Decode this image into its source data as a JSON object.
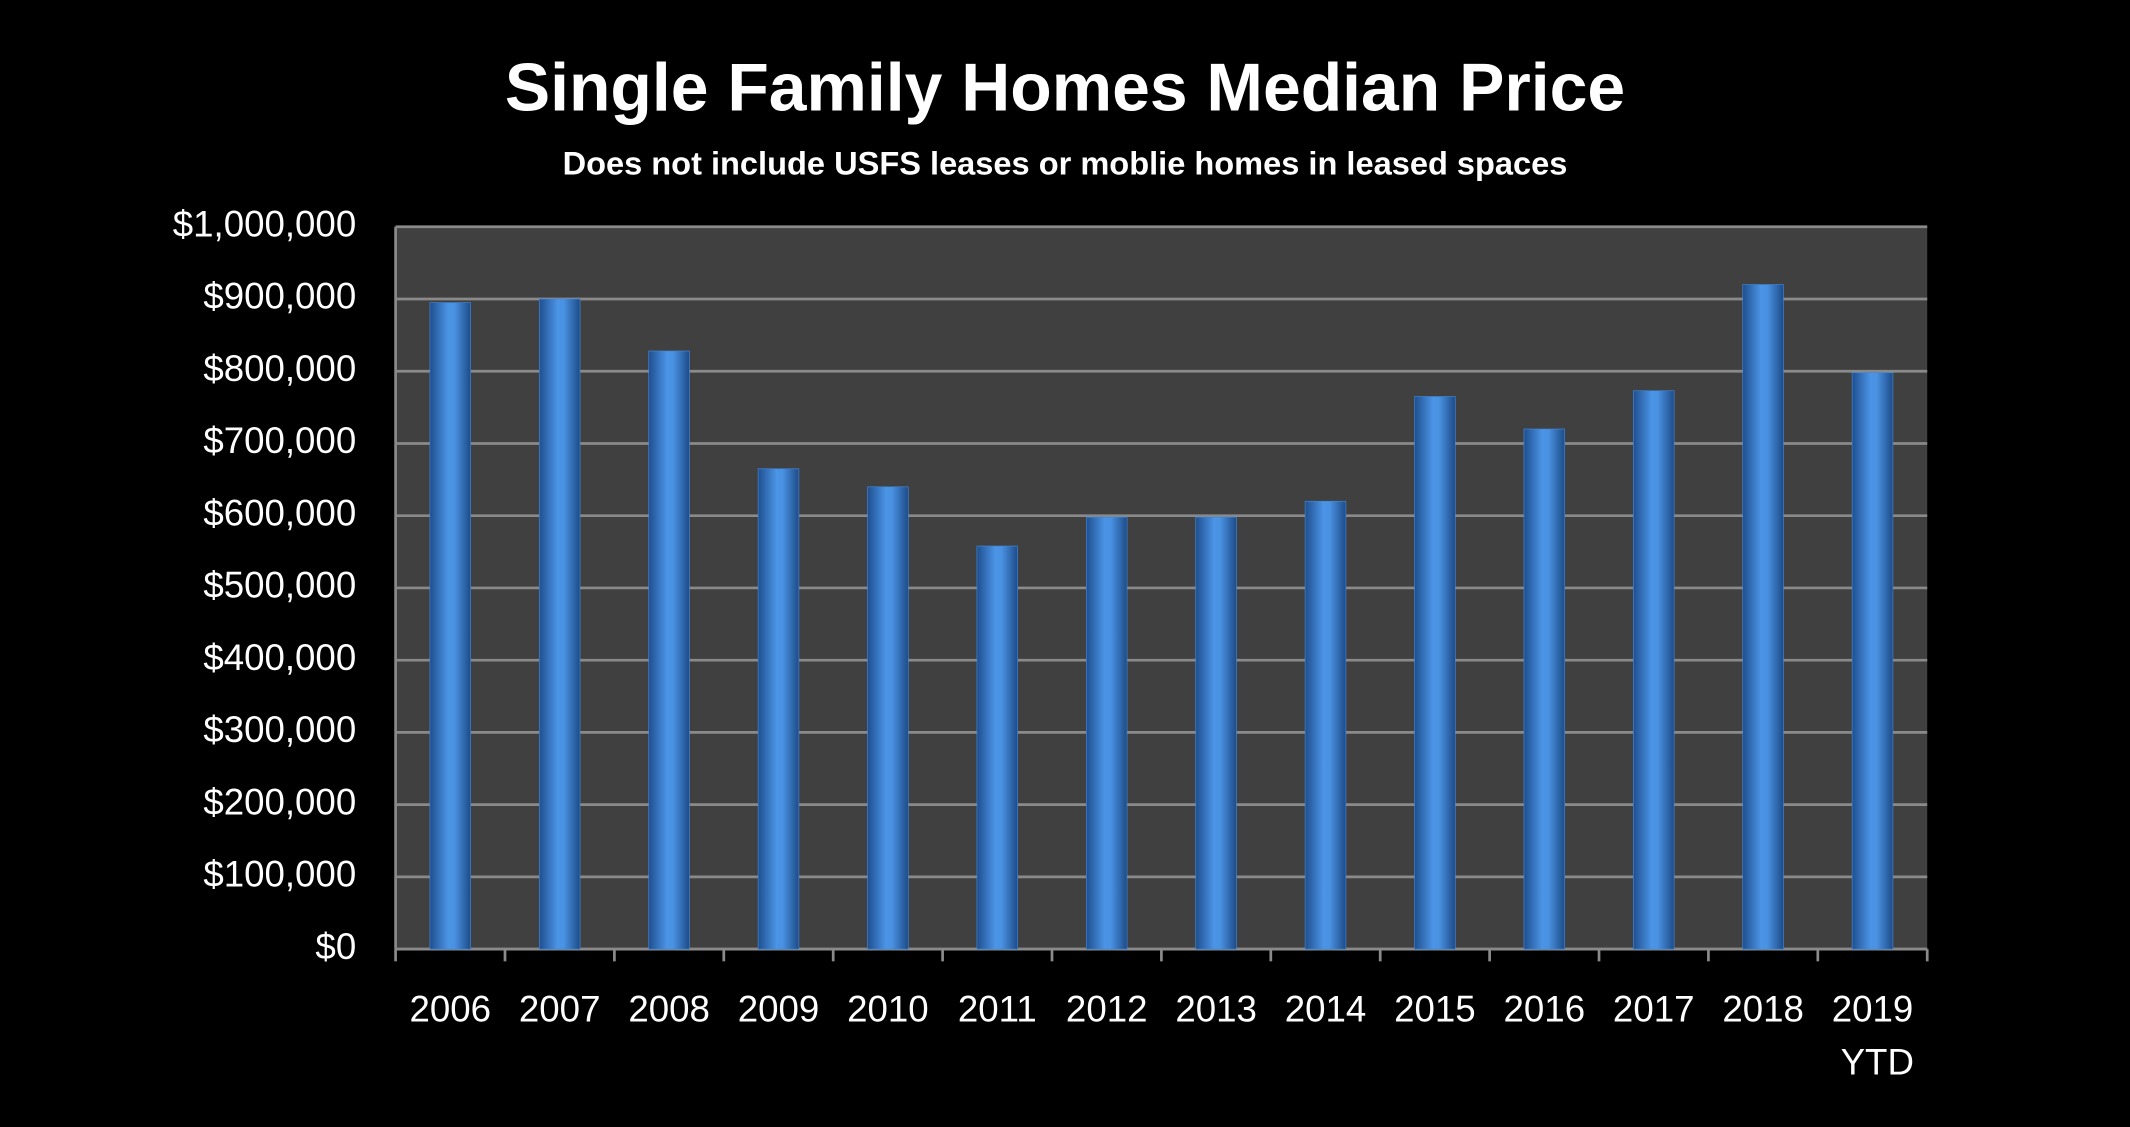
{
  "chart_data": {
    "type": "bar",
    "title": "Single Family Homes Median Price",
    "subtitle": "Does not include USFS leases or moblie homes in leased spaces",
    "categories": [
      "2006",
      "2007",
      "2008",
      "2009",
      "2010",
      "2011",
      "2012",
      "2013",
      "2014",
      "2015",
      "2016",
      "2017",
      "2018",
      "2019 YTD"
    ],
    "values": [
      895000,
      900000,
      828000,
      665000,
      640000,
      558000,
      598000,
      598000,
      620000,
      765000,
      720000,
      773000,
      920000,
      798000
    ],
    "color": "#3f86d8",
    "ylim": [
      0,
      1000000
    ],
    "yticks": [
      {
        "value": 0,
        "label": "$0"
      },
      {
        "value": 100000,
        "label": "$100,000"
      },
      {
        "value": 200000,
        "label": "$200,000"
      },
      {
        "value": 300000,
        "label": "$300,000"
      },
      {
        "value": 400000,
        "label": "$400,000"
      },
      {
        "value": 500000,
        "label": "$500,000"
      },
      {
        "value": 600000,
        "label": "$600,000"
      },
      {
        "value": 700000,
        "label": "$700,000"
      },
      {
        "value": 800000,
        "label": "$800,000"
      },
      {
        "value": 900000,
        "label": "$900,000"
      },
      {
        "value": 1000000,
        "label": "$1,000,000"
      }
    ],
    "grid": true
  }
}
